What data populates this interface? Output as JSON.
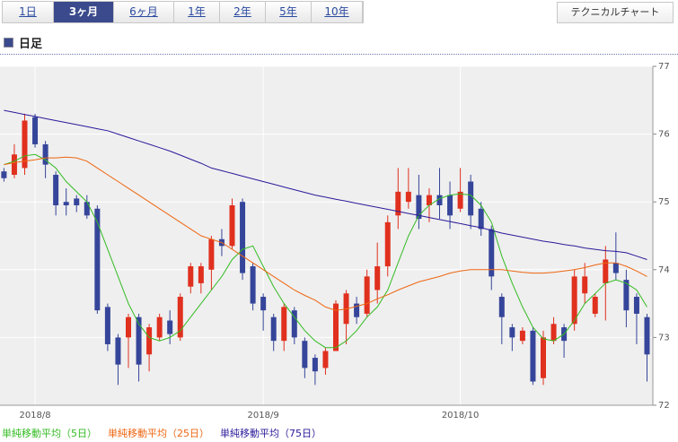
{
  "tabs": [
    "1日",
    "3ヶ月",
    "6ヶ月",
    "1年",
    "2年",
    "5年",
    "10年"
  ],
  "active_tab": 1,
  "button": "テクニカルチャート",
  "heading": "日足",
  "chart_data": {
    "type": "candlestick",
    "categories": [
      null,
      null,
      null,
      "2018/8",
      null,
      null,
      null,
      null,
      null,
      null,
      null,
      null,
      null,
      null,
      null,
      null,
      null,
      null,
      null,
      null,
      null,
      null,
      null,
      null,
      null,
      "2018/9",
      null,
      null,
      null,
      null,
      null,
      null,
      null,
      null,
      null,
      null,
      null,
      null,
      null,
      null,
      null,
      null,
      null,
      null,
      "2018/10",
      null,
      null,
      null,
      null,
      null,
      null,
      null,
      null,
      null,
      null,
      null,
      null,
      null,
      null,
      null,
      null,
      null,
      null
    ],
    "open": [
      75.45,
      75.4,
      75.5,
      76.25,
      75.85,
      75.4,
      75.0,
      75.05,
      75.0,
      74.9,
      73.45,
      73.0,
      73.0,
      73.3,
      72.75,
      73.0,
      73.25,
      73.0,
      73.75,
      73.8,
      74.0,
      74.45,
      74.35,
      75.0,
      74.05,
      73.6,
      73.3,
      72.95,
      73.4,
      72.95,
      72.7,
      72.55,
      72.8,
      73.2,
      73.5,
      73.35,
      73.7,
      74.05,
      74.8,
      75.0,
      75.1,
      74.95,
      75.1,
      75.1,
      74.9,
      75.3,
      74.9,
      74.6,
      73.6,
      73.15,
      72.95,
      73.1,
      72.4,
      72.95,
      73.15,
      73.2,
      73.65,
      73.35,
      73.8,
      74.1,
      73.85,
      73.6,
      73.3
    ],
    "high": [
      75.5,
      75.85,
      76.3,
      76.3,
      75.9,
      75.45,
      75.2,
      75.1,
      75.1,
      74.95,
      73.5,
      73.05,
      73.35,
      73.35,
      73.2,
      73.35,
      73.4,
      73.65,
      74.1,
      74.1,
      74.5,
      74.6,
      75.05,
      75.05,
      74.1,
      73.65,
      73.35,
      73.5,
      73.45,
      73.0,
      72.75,
      72.85,
      73.55,
      73.7,
      73.6,
      74.0,
      74.4,
      74.8,
      75.5,
      75.5,
      75.4,
      75.2,
      75.5,
      75.3,
      75.5,
      75.4,
      75.0,
      74.65,
      73.65,
      73.2,
      73.15,
      73.15,
      73.1,
      73.3,
      73.2,
      74.0,
      74.1,
      73.65,
      74.35,
      74.55,
      74.0,
      73.65,
      73.35
    ],
    "low": [
      75.3,
      75.35,
      75.4,
      75.8,
      75.35,
      74.8,
      74.8,
      74.85,
      74.75,
      73.35,
      72.8,
      72.3,
      72.55,
      72.35,
      72.5,
      72.95,
      72.9,
      72.95,
      73.65,
      73.65,
      73.7,
      74.2,
      74.3,
      73.85,
      73.4,
      73.1,
      72.8,
      72.8,
      72.9,
      72.4,
      72.3,
      72.45,
      72.8,
      72.9,
      73.2,
      73.3,
      73.5,
      73.9,
      74.6,
      74.9,
      74.6,
      74.7,
      74.75,
      74.6,
      74.85,
      74.6,
      74.5,
      73.7,
      72.9,
      72.8,
      72.9,
      72.3,
      72.3,
      72.9,
      72.7,
      73.1,
      73.5,
      73.3,
      73.25,
      73.85,
      73.15,
      72.9,
      72.35
    ],
    "close": [
      75.35,
      75.7,
      76.2,
      75.85,
      75.55,
      74.95,
      74.95,
      74.95,
      74.8,
      73.4,
      72.9,
      72.6,
      73.3,
      72.6,
      73.15,
      73.3,
      73.05,
      73.6,
      74.05,
      74.05,
      74.45,
      74.35,
      74.95,
      73.95,
      73.5,
      73.4,
      72.95,
      73.45,
      73.0,
      72.55,
      72.5,
      72.8,
      73.5,
      73.65,
      73.3,
      73.9,
      74.05,
      74.7,
      75.15,
      75.15,
      74.75,
      75.1,
      74.95,
      74.8,
      75.15,
      74.8,
      74.6,
      73.9,
      73.3,
      73.0,
      73.1,
      72.35,
      73.0,
      73.2,
      72.95,
      73.9,
      73.9,
      73.6,
      74.15,
      73.95,
      73.4,
      73.35,
      72.75
    ],
    "up_color": "#e0301e",
    "down_color": "#35459a",
    "series": [
      {
        "name": "単純移動平均（5日）",
        "color": "#33bb22",
        "values": [
          75.55,
          75.6,
          75.68,
          75.7,
          75.62,
          75.5,
          75.3,
          75.15,
          75.0,
          74.7,
          74.3,
          73.9,
          73.5,
          73.2,
          73.0,
          72.95,
          73.0,
          73.1,
          73.3,
          73.5,
          73.7,
          73.9,
          74.15,
          74.3,
          74.35,
          74.05,
          73.75,
          73.5,
          73.3,
          73.1,
          72.95,
          72.85,
          72.85,
          72.95,
          73.1,
          73.3,
          73.45,
          73.7,
          74.1,
          74.5,
          74.8,
          74.95,
          75.05,
          75.1,
          75.12,
          75.1,
          74.95,
          74.7,
          74.2,
          73.8,
          73.45,
          73.15,
          72.98,
          72.95,
          73.05,
          73.25,
          73.5,
          73.65,
          73.8,
          73.85,
          73.8,
          73.7,
          73.45
        ]
      },
      {
        "name": "単純移動平均（25日）",
        "color": "#ee6611",
        "values": [
          75.55,
          75.58,
          75.6,
          75.62,
          75.65,
          75.65,
          75.66,
          75.65,
          75.6,
          75.5,
          75.4,
          75.3,
          75.2,
          75.1,
          75.0,
          74.9,
          74.8,
          74.7,
          74.6,
          74.5,
          74.45,
          74.4,
          74.3,
          74.2,
          74.1,
          74.0,
          73.9,
          73.8,
          73.7,
          73.62,
          73.55,
          73.45,
          73.4,
          73.42,
          73.46,
          73.5,
          73.57,
          73.63,
          73.7,
          73.76,
          73.82,
          73.86,
          73.9,
          73.95,
          73.98,
          74.0,
          74.0,
          74.0,
          74.0,
          73.98,
          73.96,
          73.95,
          73.95,
          73.96,
          73.98,
          74.0,
          74.03,
          74.07,
          74.1,
          74.1,
          74.05,
          73.98,
          73.9
        ]
      },
      {
        "name": "単純移動平均（75日）",
        "color": "#2a1a9a",
        "values": [
          76.35,
          76.32,
          76.29,
          76.26,
          76.23,
          76.2,
          76.17,
          76.14,
          76.11,
          76.08,
          76.05,
          76.0,
          75.95,
          75.9,
          75.85,
          75.8,
          75.75,
          75.69,
          75.63,
          75.57,
          75.5,
          75.46,
          75.42,
          75.38,
          75.34,
          75.3,
          75.26,
          75.22,
          75.18,
          75.14,
          75.1,
          75.07,
          75.04,
          75.01,
          74.98,
          74.95,
          74.92,
          74.89,
          74.86,
          74.83,
          74.8,
          74.77,
          74.74,
          74.71,
          74.68,
          74.65,
          74.62,
          74.58,
          74.54,
          74.51,
          74.48,
          74.45,
          74.42,
          74.4,
          74.37,
          74.35,
          74.32,
          74.3,
          74.28,
          74.27,
          74.25,
          74.2,
          74.15
        ]
      }
    ],
    "ylim": [
      72,
      77
    ],
    "yticks": [
      72,
      73,
      74,
      75,
      76,
      77
    ],
    "grid": true
  }
}
